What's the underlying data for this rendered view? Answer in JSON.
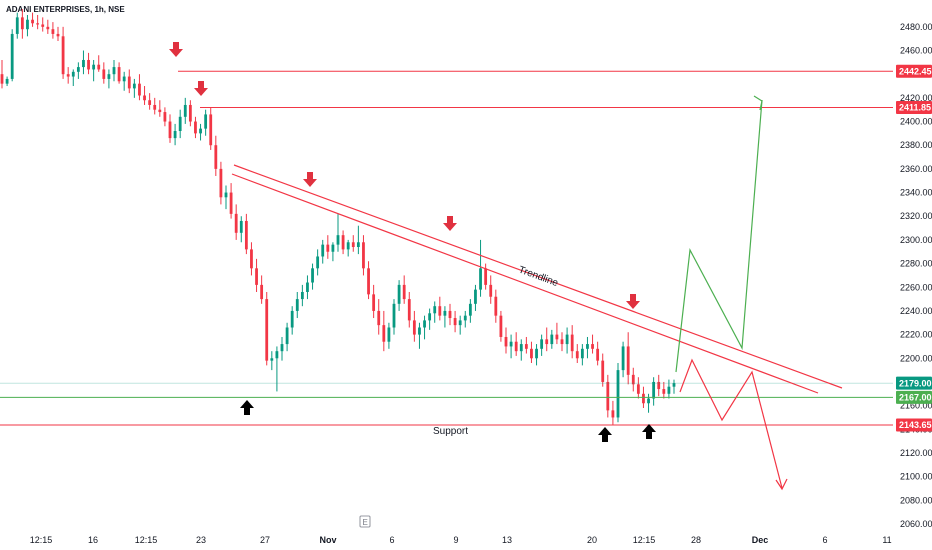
{
  "chart_data": {
    "type": "candlestick",
    "title": "ADANI ENTERPRISES, 1h, NSE",
    "y_axis": {
      "min": 2060,
      "max": 2490,
      "tick_start": 2060,
      "tick_step": 20,
      "tick_count": 22,
      "tick_decimals": 2
    },
    "x_labels": [
      "12:15",
      "16",
      "12:15",
      "23",
      "27",
      "Nov",
      "6",
      "9",
      "13",
      "20",
      "12:15",
      "28",
      "Dec",
      "6",
      "11"
    ],
    "colors": {
      "up": "#089981",
      "down": "#f23645",
      "resistance": "#f23645",
      "support": "#f23645",
      "current": "#4caf50",
      "projection_up": "#4caf50",
      "projection_down": "#f23645",
      "axis_text": "#131722"
    },
    "price_levels": [
      {
        "name": "resistance-1",
        "value": 2442.45,
        "label": "2442.45",
        "color": "#f23645"
      },
      {
        "name": "resistance-2",
        "value": 2411.85,
        "label": "2411.85",
        "color": "#f23645"
      },
      {
        "name": "current-price",
        "value": 2179.0,
        "label": "2179.00",
        "color": "#089981"
      },
      {
        "name": "support-level-green",
        "value": 2167.0,
        "label": "2167.00",
        "color": "#4caf50"
      },
      {
        "name": "support-level",
        "value": 2143.65,
        "label": "2143.65",
        "color": "#f23645"
      }
    ],
    "annotations": {
      "trendline_label": "Trendline",
      "support_label": "Support"
    },
    "candles": [
      [
        2440,
        2452,
        2428,
        2432
      ],
      [
        2432,
        2438,
        2430,
        2436
      ],
      [
        2436,
        2478,
        2434,
        2474
      ],
      [
        2474,
        2492,
        2470,
        2488
      ],
      [
        2488,
        2495,
        2470,
        2478
      ],
      [
        2478,
        2490,
        2472,
        2486
      ],
      [
        2486,
        2492,
        2480,
        2483
      ],
      [
        2483,
        2490,
        2478,
        2482
      ],
      [
        2482,
        2488,
        2476,
        2480
      ],
      [
        2480,
        2486,
        2474,
        2478
      ],
      [
        2478,
        2484,
        2470,
        2474
      ],
      [
        2474,
        2480,
        2468,
        2472
      ],
      [
        2472,
        2480,
        2436,
        2440
      ],
      [
        2440,
        2446,
        2432,
        2438
      ],
      [
        2438,
        2444,
        2430,
        2442
      ],
      [
        2442,
        2450,
        2436,
        2446
      ],
      [
        2446,
        2460,
        2440,
        2452
      ],
      [
        2452,
        2458,
        2440,
        2444
      ],
      [
        2444,
        2452,
        2434,
        2448
      ],
      [
        2448,
        2456,
        2442,
        2444
      ],
      [
        2444,
        2450,
        2432,
        2436
      ],
      [
        2436,
        2444,
        2428,
        2440
      ],
      [
        2440,
        2452,
        2434,
        2446
      ],
      [
        2446,
        2450,
        2432,
        2434
      ],
      [
        2434,
        2442,
        2426,
        2438
      ],
      [
        2438,
        2444,
        2424,
        2428
      ],
      [
        2428,
        2436,
        2420,
        2432
      ],
      [
        2432,
        2440,
        2418,
        2422
      ],
      [
        2422,
        2430,
        2414,
        2418
      ],
      [
        2418,
        2424,
        2410,
        2414
      ],
      [
        2414,
        2420,
        2406,
        2410
      ],
      [
        2410,
        2418,
        2404,
        2408
      ],
      [
        2408,
        2412,
        2396,
        2400
      ],
      [
        2400,
        2406,
        2382,
        2386
      ],
      [
        2386,
        2398,
        2380,
        2392
      ],
      [
        2392,
        2410,
        2386,
        2404
      ],
      [
        2404,
        2420,
        2398,
        2414
      ],
      [
        2414,
        2418,
        2396,
        2400
      ],
      [
        2400,
        2404,
        2386,
        2390
      ],
      [
        2390,
        2398,
        2384,
        2394
      ],
      [
        2394,
        2410,
        2388,
        2406
      ],
      [
        2406,
        2412,
        2376,
        2380
      ],
      [
        2380,
        2388,
        2354,
        2360
      ],
      [
        2360,
        2366,
        2330,
        2336
      ],
      [
        2336,
        2346,
        2326,
        2340
      ],
      [
        2340,
        2348,
        2318,
        2322
      ],
      [
        2322,
        2330,
        2300,
        2306
      ],
      [
        2306,
        2320,
        2298,
        2316
      ],
      [
        2316,
        2322,
        2288,
        2292
      ],
      [
        2292,
        2298,
        2270,
        2276
      ],
      [
        2276,
        2284,
        2256,
        2262
      ],
      [
        2262,
        2270,
        2246,
        2250
      ],
      [
        2250,
        2256,
        2194,
        2198
      ],
      [
        2198,
        2206,
        2190,
        2200
      ],
      [
        2200,
        2210,
        2172,
        2206
      ],
      [
        2206,
        2218,
        2198,
        2212
      ],
      [
        2212,
        2230,
        2206,
        2226
      ],
      [
        2226,
        2244,
        2220,
        2240
      ],
      [
        2240,
        2256,
        2234,
        2250
      ],
      [
        2250,
        2262,
        2244,
        2256
      ],
      [
        2256,
        2270,
        2250,
        2264
      ],
      [
        2264,
        2280,
        2258,
        2276
      ],
      [
        2276,
        2292,
        2270,
        2286
      ],
      [
        2286,
        2300,
        2280,
        2296
      ],
      [
        2296,
        2304,
        2284,
        2290
      ],
      [
        2290,
        2298,
        2282,
        2296
      ],
      [
        2296,
        2322,
        2290,
        2304
      ],
      [
        2304,
        2308,
        2288,
        2292
      ],
      [
        2292,
        2300,
        2286,
        2298
      ],
      [
        2298,
        2304,
        2290,
        2294
      ],
      [
        2294,
        2312,
        2288,
        2298
      ],
      [
        2298,
        2304,
        2270,
        2276
      ],
      [
        2276,
        2282,
        2250,
        2254
      ],
      [
        2254,
        2262,
        2234,
        2240
      ],
      [
        2240,
        2250,
        2220,
        2228
      ],
      [
        2228,
        2240,
        2206,
        2214
      ],
      [
        2214,
        2230,
        2208,
        2226
      ],
      [
        2226,
        2250,
        2220,
        2246
      ],
      [
        2246,
        2266,
        2240,
        2262
      ],
      [
        2262,
        2270,
        2246,
        2250
      ],
      [
        2250,
        2256,
        2226,
        2232
      ],
      [
        2232,
        2240,
        2214,
        2220
      ],
      [
        2220,
        2230,
        2208,
        2226
      ],
      [
        2226,
        2236,
        2216,
        2232
      ],
      [
        2232,
        2242,
        2224,
        2238
      ],
      [
        2238,
        2248,
        2230,
        2244
      ],
      [
        2244,
        2252,
        2232,
        2236
      ],
      [
        2236,
        2244,
        2226,
        2240
      ],
      [
        2240,
        2246,
        2228,
        2234
      ],
      [
        2234,
        2240,
        2222,
        2228
      ],
      [
        2228,
        2236,
        2220,
        2232
      ],
      [
        2232,
        2240,
        2226,
        2236
      ],
      [
        2236,
        2250,
        2230,
        2246
      ],
      [
        2246,
        2262,
        2240,
        2258
      ],
      [
        2258,
        2300,
        2252,
        2276
      ],
      [
        2276,
        2280,
        2258,
        2262
      ],
      [
        2262,
        2270,
        2246,
        2252
      ],
      [
        2252,
        2258,
        2230,
        2236
      ],
      [
        2236,
        2240,
        2214,
        2218
      ],
      [
        2218,
        2226,
        2204,
        2210
      ],
      [
        2210,
        2220,
        2200,
        2214
      ],
      [
        2214,
        2222,
        2202,
        2206
      ],
      [
        2206,
        2216,
        2198,
        2212
      ],
      [
        2212,
        2218,
        2204,
        2208
      ],
      [
        2208,
        2214,
        2196,
        2200
      ],
      [
        2200,
        2212,
        2194,
        2208
      ],
      [
        2208,
        2220,
        2202,
        2216
      ],
      [
        2216,
        2226,
        2206,
        2212
      ],
      [
        2212,
        2224,
        2208,
        2220
      ],
      [
        2220,
        2230,
        2212,
        2216
      ],
      [
        2216,
        2222,
        2206,
        2212
      ],
      [
        2212,
        2226,
        2204,
        2220
      ],
      [
        2220,
        2228,
        2200,
        2206
      ],
      [
        2206,
        2212,
        2196,
        2200
      ],
      [
        2200,
        2212,
        2194,
        2208
      ],
      [
        2208,
        2218,
        2200,
        2212
      ],
      [
        2212,
        2220,
        2204,
        2208
      ],
      [
        2208,
        2214,
        2194,
        2198
      ],
      [
        2198,
        2204,
        2176,
        2180
      ],
      [
        2180,
        2186,
        2150,
        2156
      ],
      [
        2156,
        2164,
        2144,
        2150
      ],
      [
        2150,
        2196,
        2146,
        2190
      ],
      [
        2190,
        2214,
        2184,
        2210
      ],
      [
        2210,
        2222,
        2178,
        2186
      ],
      [
        2186,
        2192,
        2172,
        2178
      ],
      [
        2178,
        2184,
        2166,
        2170
      ],
      [
        2170,
        2176,
        2158,
        2162
      ],
      [
        2162,
        2170,
        2154,
        2166
      ],
      [
        2166,
        2184,
        2160,
        2180
      ],
      [
        2180,
        2186,
        2168,
        2174
      ],
      [
        2174,
        2180,
        2166,
        2170
      ],
      [
        2170,
        2182,
        2166,
        2176
      ],
      [
        2176,
        2182,
        2170,
        2179
      ]
    ]
  }
}
